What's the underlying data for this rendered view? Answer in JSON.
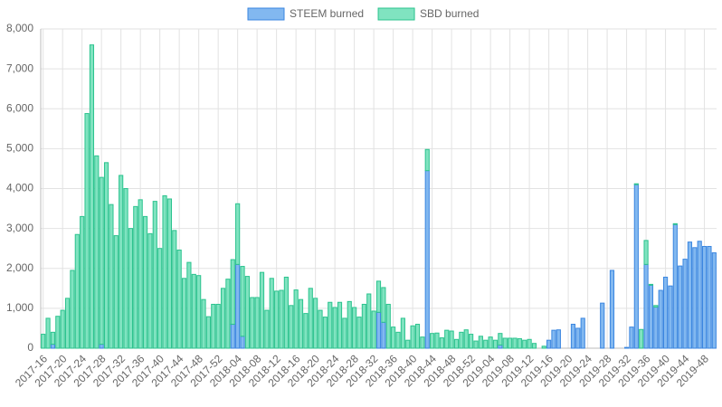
{
  "chart_data": {
    "type": "bar",
    "stacked": true,
    "grid": true,
    "legend": "top",
    "categories": [
      "2017-16",
      null,
      null,
      null,
      "2017-20",
      null,
      null,
      null,
      "2017-24",
      null,
      null,
      null,
      "2017-28",
      null,
      null,
      null,
      "2017-32",
      null,
      null,
      null,
      "2017-36",
      null,
      null,
      null,
      "2017-40",
      null,
      null,
      null,
      "2017-44",
      null,
      null,
      null,
      "2017-48",
      null,
      null,
      null,
      "2017-52",
      null,
      null,
      null,
      "2018-04",
      null,
      null,
      null,
      "2018-08",
      null,
      null,
      null,
      "2018-12",
      null,
      null,
      null,
      "2018-16",
      null,
      null,
      null,
      "2018-20",
      null,
      null,
      null,
      "2018-24",
      null,
      null,
      null,
      "2018-28",
      null,
      null,
      null,
      "2018-32",
      null,
      null,
      null,
      "2018-36",
      null,
      null,
      null,
      "2018-40",
      null,
      null,
      null,
      "2018-44",
      null,
      null,
      null,
      "2018-48",
      null,
      null,
      null,
      "2018-52",
      null,
      null,
      null,
      "2019-04",
      null,
      null,
      null,
      "2019-08",
      null,
      null,
      null,
      "2019-12",
      null,
      null,
      null,
      "2019-16",
      null,
      null,
      null,
      "2019-20",
      null,
      null,
      null,
      "2019-24",
      null,
      null,
      null,
      "2019-28",
      null,
      null,
      null,
      "2019-32",
      null,
      null,
      null,
      "2019-36",
      null,
      null,
      null,
      "2019-40",
      null,
      null,
      null,
      "2019-44",
      null,
      null,
      null,
      "2019-48",
      null,
      null
    ],
    "series": [
      {
        "name": "STEEM burned",
        "color": "#82b8f0",
        "border": "#3a86e0",
        "values": [
          0,
          0,
          100,
          0,
          0,
          0,
          0,
          0,
          0,
          0,
          0,
          0,
          100,
          0,
          0,
          0,
          0,
          0,
          0,
          0,
          0,
          0,
          0,
          0,
          0,
          0,
          0,
          0,
          0,
          0,
          0,
          0,
          0,
          0,
          0,
          0,
          0,
          0,
          0,
          600,
          2100,
          300,
          0,
          0,
          0,
          0,
          0,
          0,
          0,
          0,
          0,
          0,
          0,
          0,
          0,
          0,
          0,
          0,
          0,
          0,
          0,
          0,
          0,
          0,
          0,
          0,
          0,
          0,
          0,
          900,
          650,
          0,
          0,
          0,
          0,
          0,
          0,
          0,
          0,
          4450,
          0,
          0,
          0,
          0,
          0,
          0,
          0,
          0,
          0,
          0,
          0,
          0,
          0,
          0,
          80,
          0,
          0,
          0,
          0,
          0,
          0,
          0,
          0,
          0,
          200,
          450,
          460,
          0,
          0,
          600,
          500,
          750,
          0,
          0,
          0,
          1130,
          0,
          1950,
          0,
          0,
          20,
          530,
          4100,
          0,
          2100,
          1580,
          1030,
          1450,
          1780,
          1560,
          3100,
          2060,
          2230,
          2660,
          2520,
          2680,
          2550,
          2550,
          2390
        ]
      },
      {
        "name": "SBD burned",
        "color": "#80e3c0",
        "border": "#2bc38e",
        "values": [
          350,
          750,
          300,
          800,
          950,
          1250,
          1950,
          2850,
          3300,
          5880,
          7600,
          4820,
          4180,
          4650,
          3600,
          2820,
          4330,
          4000,
          3000,
          3550,
          3720,
          3300,
          2870,
          3680,
          2500,
          3820,
          3740,
          2950,
          2460,
          1750,
          2150,
          1850,
          1820,
          1220,
          790,
          1100,
          1100,
          1500,
          1730,
          1620,
          1520,
          1750,
          1800,
          1270,
          1270,
          1900,
          950,
          1750,
          1430,
          1450,
          1780,
          1070,
          1460,
          1220,
          870,
          1500,
          1250,
          950,
          780,
          1150,
          1020,
          1150,
          750,
          1170,
          1020,
          780,
          1100,
          1360,
          930,
          780,
          870,
          1100,
          530,
          400,
          750,
          200,
          560,
          600,
          280,
          530,
          370,
          380,
          260,
          450,
          430,
          220,
          400,
          460,
          350,
          180,
          300,
          200,
          280,
          200,
          290,
          250,
          250,
          250,
          240,
          200,
          220,
          120,
          0,
          50,
          0,
          0,
          0,
          0,
          0,
          0,
          0,
          0,
          0,
          0,
          0,
          0,
          0,
          0,
          0,
          0,
          0,
          0,
          20,
          470,
          600,
          20,
          40,
          0,
          0,
          0,
          20,
          0,
          0,
          0,
          0,
          0,
          0,
          0,
          0
        ]
      }
    ],
    "ylim": [
      0,
      8000
    ],
    "yticks": [
      0,
      {
        "value": 1000,
        "label": "1,000"
      },
      {
        "value": 2000,
        "label": "2,000"
      },
      {
        "value": 3000,
        "label": "3,000"
      },
      {
        "value": 4000,
        "label": "4,000"
      },
      {
        "value": 5000,
        "label": "5,000"
      },
      {
        "value": 6000,
        "label": "6,000"
      },
      {
        "value": 7000,
        "label": "7,000"
      },
      {
        "value": 8000,
        "label": "8,000"
      }
    ]
  }
}
